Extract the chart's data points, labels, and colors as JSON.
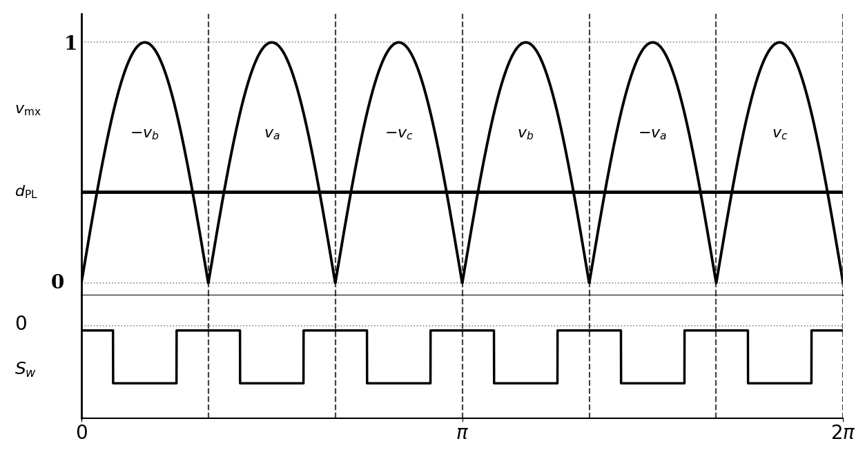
{
  "background_color": "#ffffff",
  "top_panel": {
    "ylim": [
      -0.05,
      1.12
    ],
    "dpl_level": 0.38,
    "dotted_color": "#888888",
    "signal_color": "#000000",
    "dpl_color": "#000000",
    "dpl_linewidth": 3.5,
    "signal_linewidth": 2.8
  },
  "bottom_panel": {
    "sw_low": 0.1,
    "sw_high": 1.0,
    "ylim": [
      -0.5,
      1.6
    ],
    "signal_color": "#000000",
    "signal_linewidth": 2.5
  },
  "shared": {
    "xlim": [
      0,
      6.2832
    ],
    "dash_color": "#444444",
    "dash_lw": 1.6,
    "segment_labels": [
      "-v_b",
      "v_a",
      "-v_c",
      "v_b",
      "-v_a",
      "v_c"
    ]
  }
}
